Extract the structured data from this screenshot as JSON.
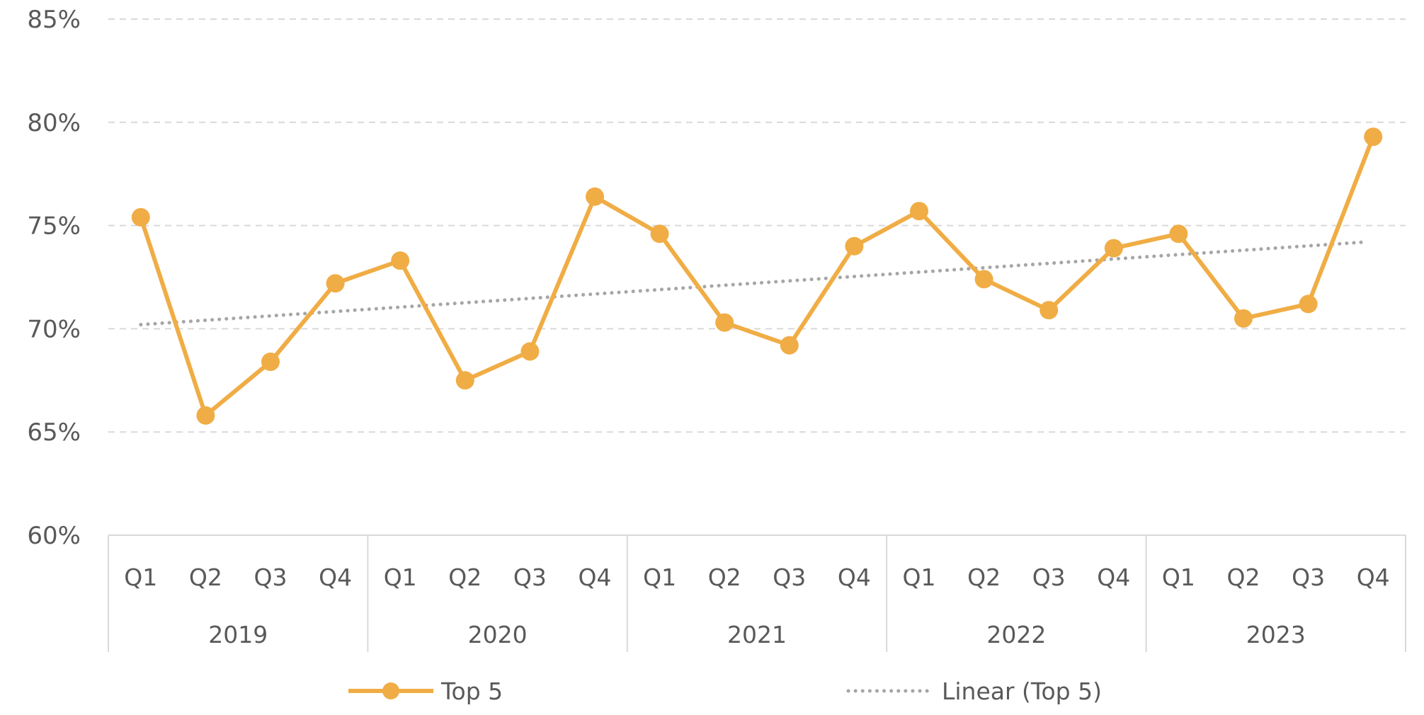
{
  "chart_data": {
    "type": "line",
    "title": "",
    "xlabel": "",
    "ylabel": "",
    "ylim": [
      60,
      85
    ],
    "yticks": [
      "85%",
      "80%",
      "75%",
      "70%",
      "65%",
      "60%"
    ],
    "ytick_values": [
      85,
      80,
      75,
      70,
      65,
      60
    ],
    "grid": true,
    "legend_position": "bottom",
    "groups": [
      {
        "label": "2019",
        "quarters": [
          "Q1",
          "Q2",
          "Q3",
          "Q4"
        ]
      },
      {
        "label": "2020",
        "quarters": [
          "Q1",
          "Q2",
          "Q3",
          "Q4"
        ]
      },
      {
        "label": "2021",
        "quarters": [
          "Q1",
          "Q2",
          "Q3",
          "Q4"
        ]
      },
      {
        "label": "2022",
        "quarters": [
          "Q1",
          "Q2",
          "Q3",
          "Q4"
        ]
      },
      {
        "label": "2023",
        "quarters": [
          "Q1",
          "Q2",
          "Q3",
          "Q4"
        ]
      }
    ],
    "series": [
      {
        "name": "Top 5",
        "color": "#F0AD45",
        "values": [
          75.4,
          65.8,
          68.4,
          72.2,
          73.3,
          67.5,
          68.9,
          76.4,
          74.6,
          70.3,
          69.2,
          74.0,
          75.7,
          72.4,
          70.9,
          73.9,
          74.6,
          70.5,
          71.2,
          79.3
        ]
      },
      {
        "name": "Linear (Top 5)",
        "color": "#A6A6A6",
        "style": "dotted",
        "trendline": true,
        "values": [
          70.2,
          74.2
        ]
      }
    ]
  }
}
